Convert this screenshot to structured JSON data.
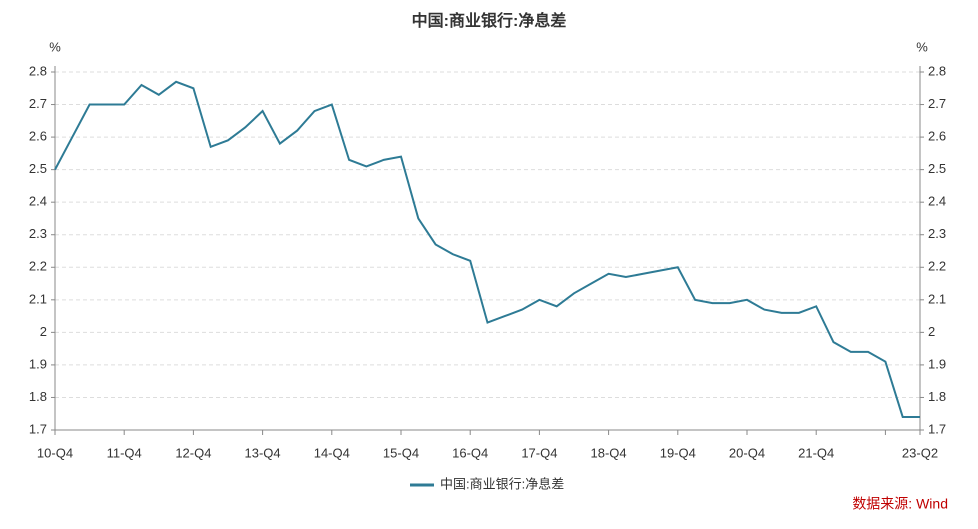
{
  "chart_data": {
    "type": "line",
    "title": "中国:商业银行:净息差",
    "y_unit": "%",
    "categories": [
      "10-Q4",
      null,
      null,
      null,
      "11-Q4",
      null,
      null,
      null,
      "12-Q4",
      null,
      null,
      null,
      "13-Q4",
      null,
      null,
      null,
      "14-Q4",
      null,
      null,
      null,
      "15-Q4",
      null,
      null,
      null,
      "16-Q4",
      null,
      null,
      null,
      "17-Q4",
      null,
      null,
      null,
      "18-Q4",
      null,
      null,
      null,
      "19-Q4",
      null,
      null,
      null,
      "20-Q4",
      null,
      null,
      null,
      "21-Q4",
      null,
      null,
      null,
      null,
      null,
      "23-Q2"
    ],
    "series": [
      {
        "name": "中国:商业银行:净息差",
        "color": "#2e7b95",
        "values": [
          2.5,
          2.6,
          2.7,
          2.7,
          2.7,
          2.76,
          2.73,
          2.77,
          2.75,
          2.57,
          2.59,
          2.63,
          2.68,
          2.58,
          2.62,
          2.68,
          2.7,
          2.53,
          2.51,
          2.53,
          2.54,
          2.35,
          2.27,
          2.24,
          2.22,
          2.03,
          2.05,
          2.07,
          2.1,
          2.08,
          2.12,
          2.15,
          2.18,
          2.17,
          2.18,
          2.19,
          2.2,
          2.1,
          2.09,
          2.09,
          2.1,
          2.07,
          2.06,
          2.06,
          2.08,
          1.97,
          1.94,
          1.94,
          1.91,
          1.74,
          1.74
        ]
      }
    ],
    "ylim": [
      1.7,
      2.8
    ],
    "yticks": [
      1.7,
      1.8,
      1.9,
      2,
      2.1,
      2.2,
      2.3,
      2.4,
      2.5,
      2.6,
      2.7,
      2.8
    ],
    "grid": true,
    "legend": "bottom",
    "source": "数据来源: Wind"
  }
}
